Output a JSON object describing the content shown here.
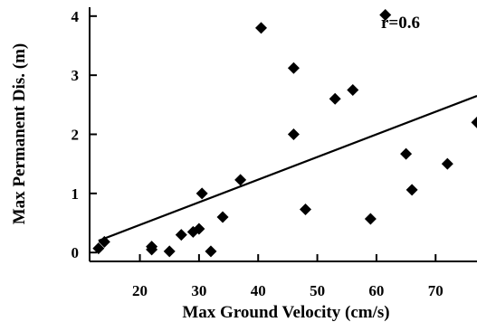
{
  "chart_data": {
    "type": "scatter",
    "title": "",
    "xlabel": "Max Ground Velocity (cm/s)",
    "ylabel": "Max Permanent Dis. (m)",
    "xlim": [
      11.5,
      77
    ],
    "ylim": [
      -0.15,
      4.15
    ],
    "xticks": [
      20,
      30,
      40,
      50,
      60,
      70
    ],
    "yticks": [
      0,
      1,
      2,
      3,
      4
    ],
    "annotation": "r=0.6",
    "grid": false,
    "legend": "none",
    "marker_color": "#000000",
    "points": [
      {
        "x": 13,
        "y": 0.07
      },
      {
        "x": 14,
        "y": 0.18
      },
      {
        "x": 22,
        "y": 0.05
      },
      {
        "x": 22,
        "y": 0.1
      },
      {
        "x": 25,
        "y": 0.02
      },
      {
        "x": 27,
        "y": 0.3
      },
      {
        "x": 29,
        "y": 0.35
      },
      {
        "x": 30,
        "y": 0.4
      },
      {
        "x": 30.5,
        "y": 1.0
      },
      {
        "x": 32,
        "y": 0.02
      },
      {
        "x": 34,
        "y": 0.6
      },
      {
        "x": 37,
        "y": 1.23
      },
      {
        "x": 40.5,
        "y": 3.8
      },
      {
        "x": 46,
        "y": 3.12
      },
      {
        "x": 46,
        "y": 2.0
      },
      {
        "x": 48,
        "y": 0.73
      },
      {
        "x": 53,
        "y": 2.6
      },
      {
        "x": 56,
        "y": 2.75
      },
      {
        "x": 59,
        "y": 0.57
      },
      {
        "x": 61.5,
        "y": 4.02
      },
      {
        "x": 65,
        "y": 1.67
      },
      {
        "x": 66,
        "y": 1.06
      },
      {
        "x": 72,
        "y": 1.5
      },
      {
        "x": 77,
        "y": 2.2
      }
    ],
    "trendline": {
      "x": [
        13,
        77
      ],
      "y": [
        0.2,
        2.65
      ]
    }
  }
}
